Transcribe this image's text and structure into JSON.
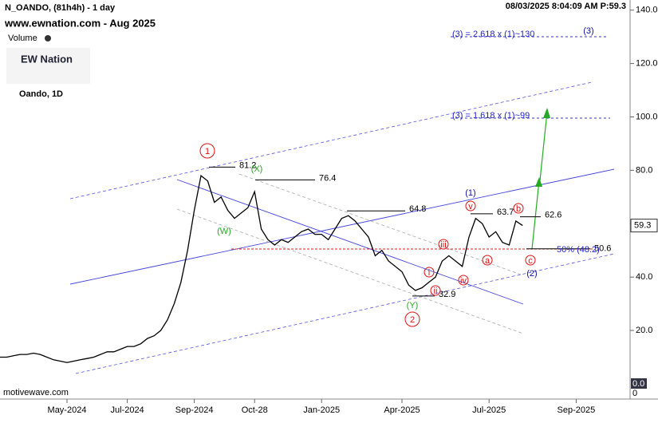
{
  "chart_data": {
    "type": "line",
    "title": "N_OANDO, (81h4h) - 1 day",
    "subtitle": "www.ewnation.com  - Aug 2025",
    "volume_label": "Volume",
    "logo": "EW Nation",
    "symbol_label": "Oando, 1D",
    "timestamp": "08/03/2025 8:04:09 AM  P:59.3",
    "watermark": "motivewave.com",
    "categories": [
      null,
      null,
      null,
      null,
      null,
      null,
      null,
      null,
      null,
      null,
      "May-2024",
      null,
      null,
      null,
      null,
      null,
      null,
      null,
      null,
      "Jul-2024",
      null,
      null,
      null,
      null,
      null,
      null,
      null,
      null,
      null,
      "Sep-2024",
      null,
      null,
      null,
      null,
      null,
      null,
      null,
      null,
      "Oct-28",
      null,
      null,
      null,
      null,
      null,
      null,
      null,
      null,
      null,
      "Jan-2025",
      null,
      null,
      null,
      null,
      null,
      null,
      null,
      null,
      null,
      null,
      null,
      "Apr-2025",
      null,
      null,
      null,
      null,
      null,
      null,
      null,
      null,
      null,
      null,
      null,
      null,
      "Jul-2025",
      null,
      null,
      null,
      null,
      null,
      null,
      null,
      null,
      null,
      null,
      null,
      null,
      "Sep-2025",
      null,
      null,
      null
    ],
    "values": [
      10,
      10,
      10.5,
      11,
      11,
      11.5,
      11,
      10,
      9,
      8.5,
      8,
      8.5,
      9,
      9.5,
      10,
      11,
      12,
      12,
      13,
      14,
      14,
      15,
      17,
      18,
      20,
      24,
      30,
      38,
      50,
      65,
      78,
      76,
      68,
      70,
      65,
      62,
      64,
      66,
      72,
      58,
      54,
      52,
      54,
      53,
      55,
      57,
      58,
      56,
      56,
      54,
      58,
      62,
      63,
      61,
      58,
      55,
      48,
      50,
      46,
      44,
      42,
      37,
      35,
      36,
      38,
      40,
      46,
      48,
      46,
      44,
      55,
      62,
      60,
      55,
      57,
      53,
      52,
      61,
      59.3,
      null,
      null,
      null,
      null,
      null,
      null,
      null,
      null,
      null,
      null,
      null
    ],
    "color": "#000000",
    "ylim": [
      -5.7,
      143.8
    ],
    "yticks": [
      {
        "value": 20,
        "label": "20.0"
      },
      {
        "value": 40,
        "label": "40.0"
      },
      {
        "value": 60,
        "label": "60.0"
      },
      {
        "value": 80,
        "label": "80.0"
      },
      {
        "value": 100,
        "label": "100.0"
      },
      {
        "value": 120,
        "label": "120.0"
      },
      {
        "value": 140,
        "label": "140.0"
      }
    ],
    "levels": [
      81.2,
      76.4,
      64.8,
      63.7,
      62.6,
      50.6,
      32.9
    ],
    "fib_labels": [
      "(3) = 2.618 x (1)~130",
      "(3) = 1.618 x (1)~99",
      "50% (48.2)"
    ],
    "waves": [
      "1",
      "(X)",
      "(W)",
      "2",
      "(Y)",
      "(1)",
      "(2)",
      "(3)",
      "i",
      "ii",
      "iii",
      "iv",
      "v",
      "a",
      "b",
      "c"
    ],
    "volume_axis": [
      {
        "value": 0,
        "label": "0.0"
      },
      0
    ]
  }
}
